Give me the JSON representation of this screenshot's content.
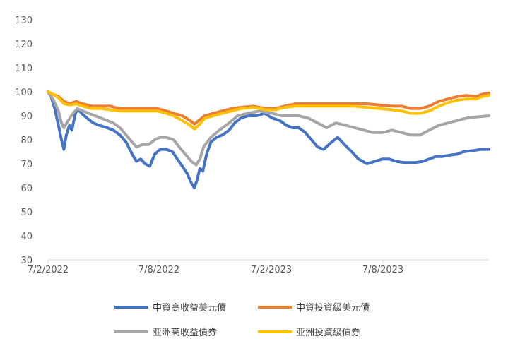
{
  "chart_data": {
    "type": "line",
    "title": "",
    "xlabel": "",
    "ylabel": "",
    "ylim": [
      30,
      130
    ],
    "yticks": [
      30,
      40,
      50,
      60,
      70,
      80,
      90,
      100,
      110,
      120,
      130
    ],
    "x_tick_labels": [
      "7/2/2022",
      "7/8/2022",
      "7/2/2023",
      "7/8/2023"
    ],
    "x_range": [
      "2022-02-07",
      "2024-01-31"
    ],
    "grid": false,
    "legend_position": "bottom",
    "series": [
      {
        "name": "中資高收益美元債",
        "color": "#4472C4",
        "points": [
          [
            "2022-02-07",
            100
          ],
          [
            "2022-02-12",
            98
          ],
          [
            "2022-02-18",
            93
          ],
          [
            "2022-02-24",
            86
          ],
          [
            "2022-03-01",
            80
          ],
          [
            "2022-03-05",
            76
          ],
          [
            "2022-03-09",
            82
          ],
          [
            "2022-03-14",
            86
          ],
          [
            "2022-03-18",
            84
          ],
          [
            "2022-03-23",
            90
          ],
          [
            "2022-03-27",
            93
          ],
          [
            "2022-04-03",
            91
          ],
          [
            "2022-04-12",
            89
          ],
          [
            "2022-04-22",
            87
          ],
          [
            "2022-05-02",
            86
          ],
          [
            "2022-05-15",
            85
          ],
          [
            "2022-05-25",
            84
          ],
          [
            "2022-06-05",
            82
          ],
          [
            "2022-06-15",
            79
          ],
          [
            "2022-06-25",
            74
          ],
          [
            "2022-07-02",
            71
          ],
          [
            "2022-07-09",
            72
          ],
          [
            "2022-07-16",
            70
          ],
          [
            "2022-07-24",
            69
          ],
          [
            "2022-08-01",
            74
          ],
          [
            "2022-08-10",
            76
          ],
          [
            "2022-08-20",
            76
          ],
          [
            "2022-08-30",
            75
          ],
          [
            "2022-09-07",
            72
          ],
          [
            "2022-09-15",
            69
          ],
          [
            "2022-09-23",
            66
          ],
          [
            "2022-09-30",
            62
          ],
          [
            "2022-10-05",
            60
          ],
          [
            "2022-10-09",
            63
          ],
          [
            "2022-10-14",
            68
          ],
          [
            "2022-10-19",
            67
          ],
          [
            "2022-10-25",
            74
          ],
          [
            "2022-11-01",
            79
          ],
          [
            "2022-11-10",
            81
          ],
          [
            "2022-11-20",
            82
          ],
          [
            "2022-12-01",
            84
          ],
          [
            "2022-12-10",
            87
          ],
          [
            "2022-12-20",
            89
          ],
          [
            "2023-01-01",
            90
          ],
          [
            "2023-01-15",
            90
          ],
          [
            "2023-01-28",
            91
          ],
          [
            "2023-02-10",
            89
          ],
          [
            "2023-02-22",
            88
          ],
          [
            "2023-03-05",
            86
          ],
          [
            "2023-03-15",
            85
          ],
          [
            "2023-03-25",
            85
          ],
          [
            "2023-04-05",
            83
          ],
          [
            "2023-04-15",
            80
          ],
          [
            "2023-04-25",
            77
          ],
          [
            "2023-05-05",
            76
          ],
          [
            "2023-05-18",
            79
          ],
          [
            "2023-05-28",
            81
          ],
          [
            "2023-06-08",
            78
          ],
          [
            "2023-06-20",
            75
          ],
          [
            "2023-07-01",
            72
          ],
          [
            "2023-07-15",
            70
          ],
          [
            "2023-07-28",
            71
          ],
          [
            "2023-08-10",
            72
          ],
          [
            "2023-08-20",
            72
          ],
          [
            "2023-09-01",
            71
          ],
          [
            "2023-09-15",
            70.5
          ],
          [
            "2023-10-01",
            70.5
          ],
          [
            "2023-10-15",
            71
          ],
          [
            "2023-10-25",
            72
          ],
          [
            "2023-11-05",
            73
          ],
          [
            "2023-11-15",
            73
          ],
          [
            "2023-11-25",
            73.5
          ],
          [
            "2023-12-10",
            74
          ],
          [
            "2023-12-20",
            75
          ],
          [
            "2024-01-05",
            75.5
          ],
          [
            "2024-01-18",
            76
          ],
          [
            "2024-01-31",
            76
          ]
        ]
      },
      {
        "name": "中資投資級美元債",
        "color": "#ED7D31",
        "points": [
          [
            "2022-02-07",
            100
          ],
          [
            "2022-02-15",
            99
          ],
          [
            "2022-02-24",
            98
          ],
          [
            "2022-03-05",
            96
          ],
          [
            "2022-03-15",
            95
          ],
          [
            "2022-03-25",
            96
          ],
          [
            "2022-04-05",
            95
          ],
          [
            "2022-04-20",
            94
          ],
          [
            "2022-05-05",
            94
          ],
          [
            "2022-05-20",
            94
          ],
          [
            "2022-06-05",
            93
          ],
          [
            "2022-06-20",
            93
          ],
          [
            "2022-07-05",
            93
          ],
          [
            "2022-07-20",
            93
          ],
          [
            "2022-08-05",
            93
          ],
          [
            "2022-08-20",
            92
          ],
          [
            "2022-09-01",
            91
          ],
          [
            "2022-09-15",
            90
          ],
          [
            "2022-09-28",
            88
          ],
          [
            "2022-10-05",
            86.5
          ],
          [
            "2022-10-12",
            88
          ],
          [
            "2022-10-22",
            90
          ],
          [
            "2022-11-05",
            91
          ],
          [
            "2022-11-20",
            92
          ],
          [
            "2022-12-05",
            93
          ],
          [
            "2022-12-20",
            93.5
          ],
          [
            "2023-01-10",
            94
          ],
          [
            "2023-01-30",
            93
          ],
          [
            "2023-02-15",
            93
          ],
          [
            "2023-03-01",
            94
          ],
          [
            "2023-03-20",
            95
          ],
          [
            "2023-04-05",
            95
          ],
          [
            "2023-04-25",
            95
          ],
          [
            "2023-05-15",
            95
          ],
          [
            "2023-06-05",
            95
          ],
          [
            "2023-06-25",
            95
          ],
          [
            "2023-07-15",
            95
          ],
          [
            "2023-08-05",
            94.5
          ],
          [
            "2023-08-25",
            94
          ],
          [
            "2023-09-10",
            94
          ],
          [
            "2023-09-25",
            93
          ],
          [
            "2023-10-10",
            93
          ],
          [
            "2023-10-25",
            94
          ],
          [
            "2023-11-10",
            96
          ],
          [
            "2023-11-25",
            97
          ],
          [
            "2023-12-10",
            98
          ],
          [
            "2023-12-25",
            98.5
          ],
          [
            "2024-01-10",
            98
          ],
          [
            "2024-01-20",
            99
          ],
          [
            "2024-01-31",
            99.5
          ]
        ]
      },
      {
        "name": "亚洲高收益債券",
        "color": "#A5A5A5",
        "points": [
          [
            "2022-02-07",
            100
          ],
          [
            "2022-02-15",
            97
          ],
          [
            "2022-02-24",
            92
          ],
          [
            "2022-03-01",
            87
          ],
          [
            "2022-03-05",
            85
          ],
          [
            "2022-03-12",
            88
          ],
          [
            "2022-03-20",
            91
          ],
          [
            "2022-03-27",
            93
          ],
          [
            "2022-04-05",
            92
          ],
          [
            "2022-04-15",
            91
          ],
          [
            "2022-04-25",
            90
          ],
          [
            "2022-05-05",
            89
          ],
          [
            "2022-05-15",
            88
          ],
          [
            "2022-05-25",
            87
          ],
          [
            "2022-06-05",
            85
          ],
          [
            "2022-06-15",
            82
          ],
          [
            "2022-06-25",
            79
          ],
          [
            "2022-07-02",
            77
          ],
          [
            "2022-07-12",
            78
          ],
          [
            "2022-07-22",
            78
          ],
          [
            "2022-08-01",
            80
          ],
          [
            "2022-08-10",
            81
          ],
          [
            "2022-08-20",
            81
          ],
          [
            "2022-09-01",
            80
          ],
          [
            "2022-09-10",
            77
          ],
          [
            "2022-09-20",
            74
          ],
          [
            "2022-09-30",
            71
          ],
          [
            "2022-10-08",
            69.5
          ],
          [
            "2022-10-14",
            72
          ],
          [
            "2022-10-20",
            77
          ],
          [
            "2022-11-01",
            81
          ],
          [
            "2022-11-15",
            84
          ],
          [
            "2022-12-01",
            87
          ],
          [
            "2022-12-15",
            90
          ],
          [
            "2023-01-01",
            91
          ],
          [
            "2023-01-20",
            92
          ],
          [
            "2023-02-10",
            91
          ],
          [
            "2023-02-25",
            90
          ],
          [
            "2023-03-10",
            90
          ],
          [
            "2023-03-25",
            90
          ],
          [
            "2023-04-10",
            89
          ],
          [
            "2023-04-25",
            87
          ],
          [
            "2023-05-10",
            85
          ],
          [
            "2023-05-25",
            87
          ],
          [
            "2023-06-10",
            86
          ],
          [
            "2023-06-25",
            85
          ],
          [
            "2023-07-10",
            84
          ],
          [
            "2023-07-25",
            83
          ],
          [
            "2023-08-10",
            83
          ],
          [
            "2023-08-25",
            84
          ],
          [
            "2023-09-10",
            83
          ],
          [
            "2023-09-25",
            82
          ],
          [
            "2023-10-10",
            82
          ],
          [
            "2023-10-25",
            84
          ],
          [
            "2023-11-10",
            86
          ],
          [
            "2023-11-25",
            87
          ],
          [
            "2023-12-10",
            88
          ],
          [
            "2023-12-25",
            89
          ],
          [
            "2024-01-10",
            89.5
          ],
          [
            "2024-01-31",
            90
          ]
        ]
      },
      {
        "name": "亚洲投資級債券",
        "color": "#FFC000",
        "points": [
          [
            "2022-02-07",
            100
          ],
          [
            "2022-02-15",
            99
          ],
          [
            "2022-02-24",
            97.5
          ],
          [
            "2022-03-05",
            95
          ],
          [
            "2022-03-15",
            94.5
          ],
          [
            "2022-03-25",
            95
          ],
          [
            "2022-04-05",
            94
          ],
          [
            "2022-04-20",
            93
          ],
          [
            "2022-05-05",
            93
          ],
          [
            "2022-05-20",
            92.5
          ],
          [
            "2022-06-05",
            92
          ],
          [
            "2022-06-20",
            92
          ],
          [
            "2022-07-05",
            92
          ],
          [
            "2022-07-20",
            92
          ],
          [
            "2022-08-05",
            92
          ],
          [
            "2022-08-20",
            91
          ],
          [
            "2022-09-01",
            90
          ],
          [
            "2022-09-15",
            88
          ],
          [
            "2022-09-28",
            86
          ],
          [
            "2022-10-05",
            84.5
          ],
          [
            "2022-10-12",
            86
          ],
          [
            "2022-10-22",
            89
          ],
          [
            "2022-11-05",
            90
          ],
          [
            "2022-11-20",
            91
          ],
          [
            "2022-12-05",
            92
          ],
          [
            "2022-12-20",
            93
          ],
          [
            "2023-01-10",
            93.5
          ],
          [
            "2023-01-30",
            92.5
          ],
          [
            "2023-02-15",
            92.5
          ],
          [
            "2023-03-01",
            93.5
          ],
          [
            "2023-03-20",
            94
          ],
          [
            "2023-04-05",
            94
          ],
          [
            "2023-04-25",
            94
          ],
          [
            "2023-05-15",
            94
          ],
          [
            "2023-06-05",
            94
          ],
          [
            "2023-06-25",
            94
          ],
          [
            "2023-07-15",
            93.5
          ],
          [
            "2023-08-05",
            93
          ],
          [
            "2023-08-25",
            92.5
          ],
          [
            "2023-09-10",
            92
          ],
          [
            "2023-09-25",
            91
          ],
          [
            "2023-10-10",
            91
          ],
          [
            "2023-10-25",
            92
          ],
          [
            "2023-11-10",
            94
          ],
          [
            "2023-11-25",
            95.5
          ],
          [
            "2023-12-10",
            96.5
          ],
          [
            "2023-12-25",
            97
          ],
          [
            "2024-01-10",
            97
          ],
          [
            "2024-01-20",
            98
          ],
          [
            "2024-01-31",
            98.5
          ]
        ]
      }
    ]
  }
}
